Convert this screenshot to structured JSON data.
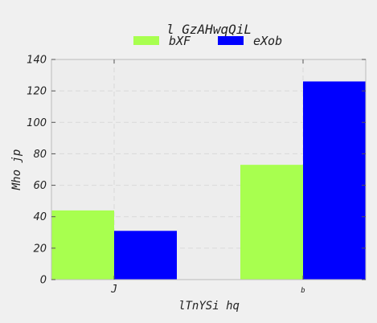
{
  "chart_data": {
    "type": "bar",
    "title": "l GzAHwqQiL",
    "xlabel": "lTnYSi hq",
    "ylabel": "Mho jp",
    "categories": [
      "J",
      "b"
    ],
    "series": [
      {
        "name": "bXF",
        "values": [
          44,
          73
        ],
        "color": "#a8ff4f"
      },
      {
        "name": "eXob",
        "values": [
          31,
          126
        ],
        "color": "#0000ff"
      }
    ],
    "ylim": [
      0,
      140
    ],
    "yticks": [
      0,
      20,
      40,
      60,
      80,
      100,
      120,
      140
    ],
    "grid": true,
    "legend_position": "top-center",
    "plot_background": "#ededed"
  }
}
